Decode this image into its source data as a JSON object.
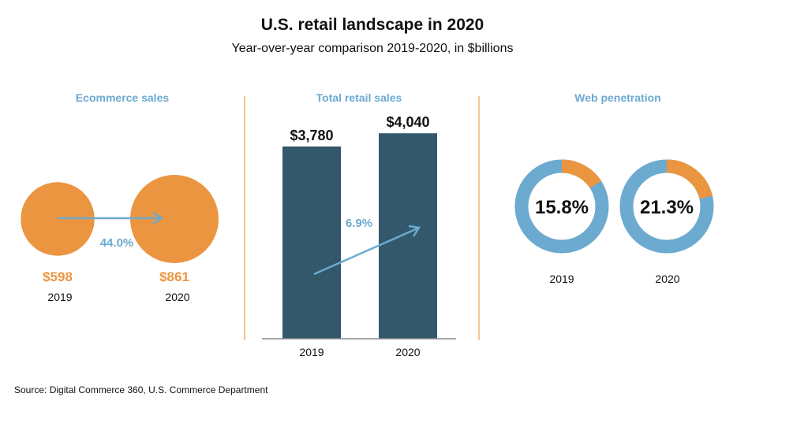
{
  "title": "U.S. retail landscape in 2020",
  "subtitle": "Year-over-year comparison 2019-2020, in $billions",
  "source": "Source: Digital Commerce 360, U.S. Commerce Department",
  "colors": {
    "orange": "#EB9540",
    "blue": "#6CAAD0",
    "navy": "#33586B",
    "title": "#111111",
    "divider": "#F0B070"
  },
  "chart_data": [
    {
      "type": "bubble",
      "title": "Ecommerce sales",
      "categories": [
        "2019",
        "2020"
      ],
      "values": [
        598,
        861
      ],
      "value_labels": [
        "$598",
        "$861"
      ],
      "change_label": "44.0%"
    },
    {
      "type": "bar",
      "title": "Total retail sales",
      "categories": [
        "2019",
        "2020"
      ],
      "values": [
        3780,
        4040
      ],
      "value_labels": [
        "$3,780",
        "$4,040"
      ],
      "change_label": "6.9%"
    },
    {
      "type": "donut",
      "title": "Web penetration",
      "categories": [
        "2019",
        "2020"
      ],
      "values": [
        15.8,
        21.3
      ],
      "value_labels": [
        "15.8%",
        "21.3%"
      ]
    }
  ]
}
